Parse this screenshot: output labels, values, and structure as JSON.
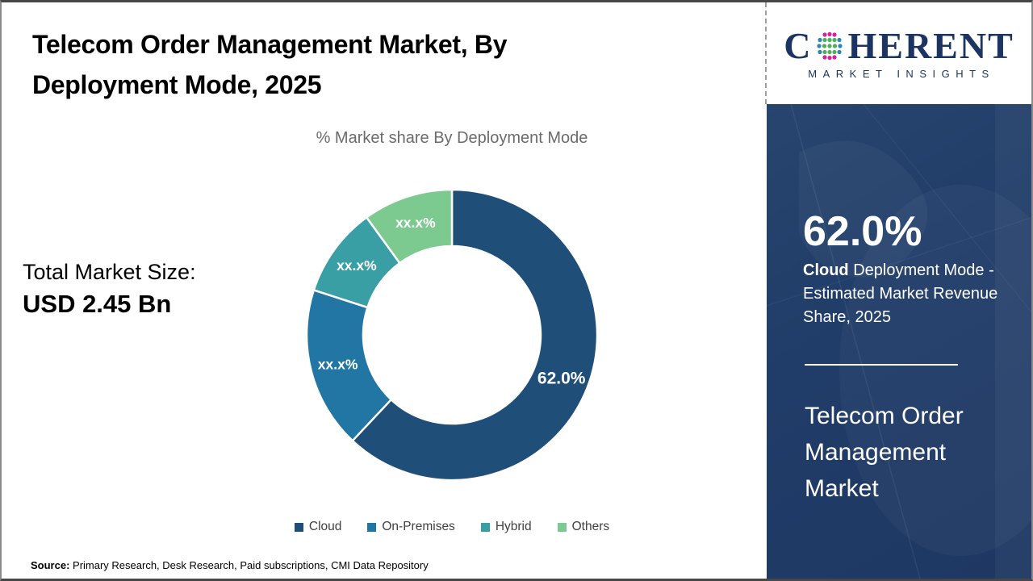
{
  "header": {
    "title": "Telecom Order Management Market, By Deployment Mode, 2025"
  },
  "total_market": {
    "label": "Total Market Size:",
    "value": "USD 2.45 Bn"
  },
  "chart_data": {
    "type": "pie",
    "subtype": "donut",
    "title": "% Market share By Deployment Mode",
    "legend_position": "bottom",
    "start_angle_deg": 0,
    "direction": "clockwise",
    "segments": [
      {
        "label": "Cloud",
        "value": 62.0,
        "display": "62.0%",
        "color": "#1F4E79",
        "emphasis": true
      },
      {
        "label": "On-Premises",
        "value": 18.0,
        "display": "xx.x%",
        "color": "#2176A3",
        "emphasis": false
      },
      {
        "label": "Hybrid",
        "value": 10.0,
        "display": "xx.x%",
        "color": "#3A9EA5",
        "emphasis": false
      },
      {
        "label": "Others",
        "value": 10.0,
        "display": "xx.x%",
        "color": "#7DCA90",
        "emphasis": false
      }
    ]
  },
  "sidebar": {
    "logo": {
      "letter_c": "C",
      "letters_rest": "HERENT",
      "tagline": "MARKET INSIGHTS"
    },
    "stat": {
      "value": "62.0%",
      "highlight": "Cloud",
      "description": " Deployment Mode - Estimated Market Revenue Share, 2025"
    },
    "market_name": "Telecom Order Management Market"
  },
  "footer": {
    "source_label": "Source:",
    "source_text": " Primary Research, Desk Research, Paid subscriptions, CMI Data Repository"
  },
  "colors": {
    "panel_navy": "#203C68",
    "logo_navy": "#1C3461",
    "subtitle_gray": "#6B6B6B",
    "legend_text": "#404040"
  }
}
